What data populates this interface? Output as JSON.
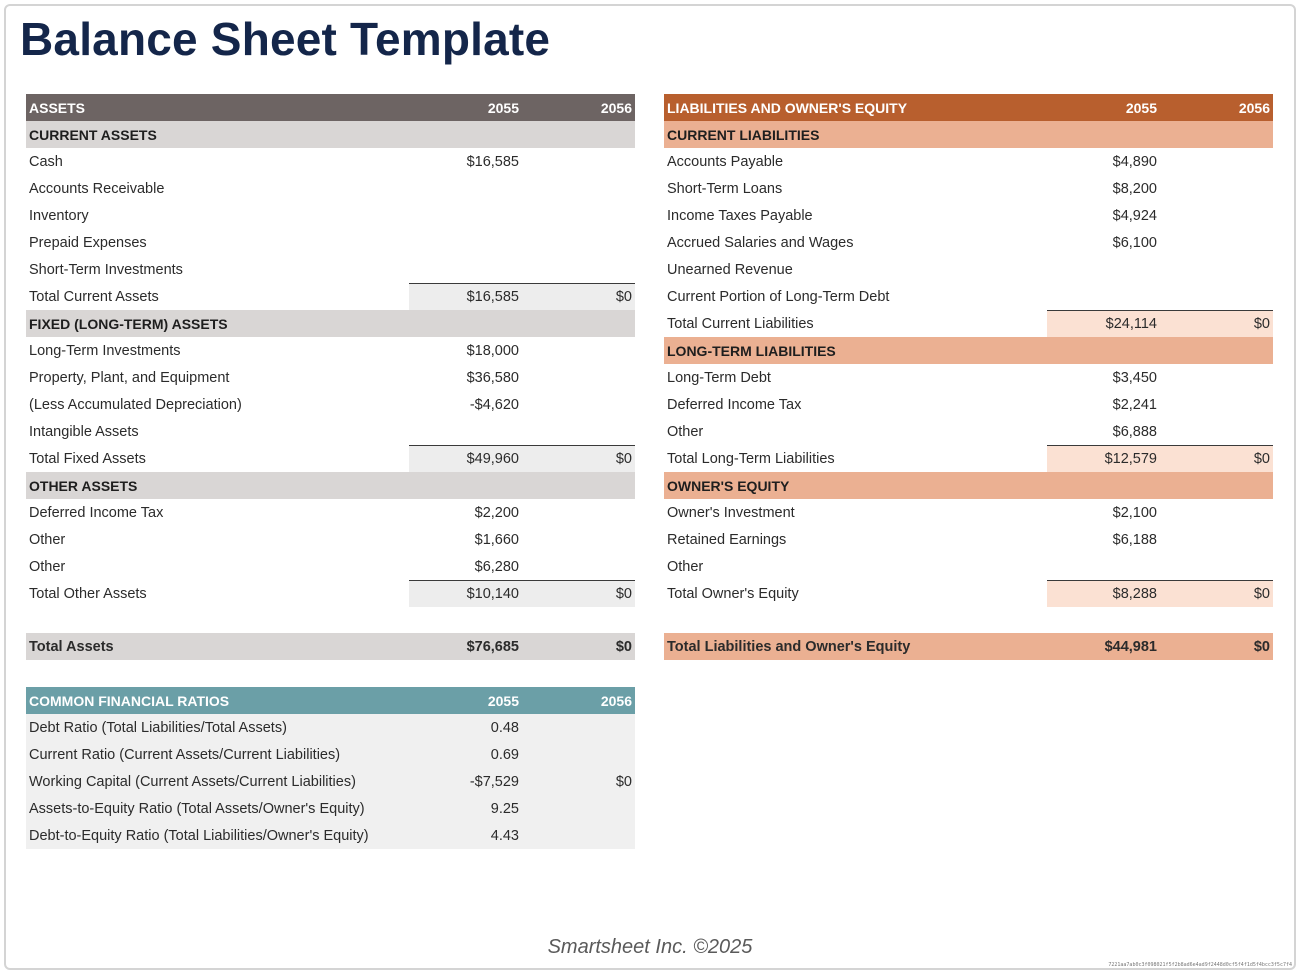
{
  "title": "Balance Sheet Template",
  "assets": {
    "header": {
      "label": "ASSETS",
      "y1": "2055",
      "y2": "2056"
    },
    "rows": [
      {
        "type": "sec",
        "label": "CURRENT ASSETS",
        "v1": "",
        "v2": ""
      },
      {
        "type": "item",
        "label": "Cash",
        "v1": "$16,585",
        "v2": ""
      },
      {
        "type": "item",
        "label": "Accounts Receivable",
        "v1": "",
        "v2": ""
      },
      {
        "type": "item",
        "label": "Inventory",
        "v1": "",
        "v2": ""
      },
      {
        "type": "item",
        "label": "Prepaid Expenses",
        "v1": "",
        "v2": ""
      },
      {
        "type": "item",
        "label": "Short-Term Investments",
        "v1": "",
        "v2": ""
      },
      {
        "type": "ttl",
        "label": "Total Current Assets",
        "v1": "$16,585",
        "v2": "$0"
      },
      {
        "type": "sec",
        "label": "FIXED (LONG-TERM) ASSETS",
        "v1": "",
        "v2": ""
      },
      {
        "type": "item",
        "label": "Long-Term Investments",
        "v1": "$18,000",
        "v2": ""
      },
      {
        "type": "item",
        "label": "Property, Plant, and Equipment",
        "v1": "$36,580",
        "v2": ""
      },
      {
        "type": "item",
        "label": "(Less Accumulated Depreciation)",
        "v1": "-$4,620",
        "v2": ""
      },
      {
        "type": "item",
        "label": "Intangible Assets",
        "v1": "",
        "v2": ""
      },
      {
        "type": "ttl",
        "label": "Total Fixed Assets",
        "v1": "$49,960",
        "v2": "$0"
      },
      {
        "type": "sec",
        "label": "OTHER ASSETS",
        "v1": "",
        "v2": ""
      },
      {
        "type": "item",
        "label": "Deferred Income Tax",
        "v1": "$2,200",
        "v2": ""
      },
      {
        "type": "item",
        "label": "Other",
        "v1": "$1,660",
        "v2": ""
      },
      {
        "type": "item",
        "label": "Other",
        "v1": "$6,280",
        "v2": ""
      },
      {
        "type": "ttl",
        "label": "Total Other Assets",
        "v1": "$10,140",
        "v2": "$0"
      }
    ],
    "total": {
      "label": "Total Assets",
      "v1": "$76,685",
      "v2": "$0"
    }
  },
  "liabilities": {
    "header": {
      "label": "LIABILITIES AND OWNER'S EQUITY",
      "y1": "2055",
      "y2": "2056"
    },
    "rows": [
      {
        "type": "sec",
        "label": "CURRENT LIABILITIES",
        "v1": "",
        "v2": ""
      },
      {
        "type": "item",
        "label": "Accounts Payable",
        "v1": "$4,890",
        "v2": ""
      },
      {
        "type": "item",
        "label": "Short-Term Loans",
        "v1": "$8,200",
        "v2": ""
      },
      {
        "type": "item",
        "label": "Income Taxes Payable",
        "v1": "$4,924",
        "v2": ""
      },
      {
        "type": "item",
        "label": "Accrued Salaries and Wages",
        "v1": "$6,100",
        "v2": ""
      },
      {
        "type": "item",
        "label": "Unearned Revenue",
        "v1": "",
        "v2": ""
      },
      {
        "type": "item",
        "label": "Current Portion of Long-Term Debt",
        "v1": "",
        "v2": ""
      },
      {
        "type": "ttl",
        "label": "Total Current Liabilities",
        "v1": "$24,114",
        "v2": "$0"
      },
      {
        "type": "sec",
        "label": "LONG-TERM LIABILITIES",
        "v1": "",
        "v2": ""
      },
      {
        "type": "item",
        "label": "Long-Term Debt",
        "v1": "$3,450",
        "v2": ""
      },
      {
        "type": "item",
        "label": "Deferred Income Tax",
        "v1": "$2,241",
        "v2": ""
      },
      {
        "type": "item",
        "label": "Other",
        "v1": "$6,888",
        "v2": ""
      },
      {
        "type": "ttl",
        "label": "Total Long-Term Liabilities",
        "v1": "$12,579",
        "v2": "$0"
      },
      {
        "type": "sec",
        "label": "OWNER'S EQUITY",
        "v1": "",
        "v2": ""
      },
      {
        "type": "item",
        "label": "Owner's Investment",
        "v1": "$2,100",
        "v2": ""
      },
      {
        "type": "item",
        "label": "Retained Earnings",
        "v1": "$6,188",
        "v2": ""
      },
      {
        "type": "item",
        "label": "Other",
        "v1": "",
        "v2": ""
      },
      {
        "type": "ttl",
        "label": "Total Owner's Equity",
        "v1": "$8,288",
        "v2": "$0"
      }
    ],
    "total": {
      "label": "Total Liabilities and Owner's Equity",
      "v1": "$44,981",
      "v2": "$0"
    }
  },
  "ratios": {
    "header": {
      "label": "COMMON FINANCIAL RATIOS",
      "y1": "2055",
      "y2": "2056"
    },
    "rows": [
      {
        "type": "item",
        "label": "Debt Ratio (Total Liabilities/Total Assets)",
        "v1": "0.48",
        "v2": ""
      },
      {
        "type": "item",
        "label": "Current Ratio (Current Assets/Current Liabilities)",
        "v1": "0.69",
        "v2": ""
      },
      {
        "type": "item",
        "label": "Working Capital (Current Assets/Current Liabilities)",
        "v1": "-$7,529",
        "v2": "$0"
      },
      {
        "type": "item",
        "label": "Assets-to-Equity Ratio (Total Assets/Owner's Equity)",
        "v1": "9.25",
        "v2": ""
      },
      {
        "type": "item",
        "label": "Debt-to-Equity Ratio (Total Liabilities/Owner's Equity)",
        "v1": "4.43",
        "v2": ""
      }
    ]
  },
  "footer": "Smartsheet Inc. ©2025",
  "doc_id": "7221aa7ab0c3f098021f5f2b8ad6e4ad9f2448d0cf5f4f1d5f4bcc3f5c7f4"
}
